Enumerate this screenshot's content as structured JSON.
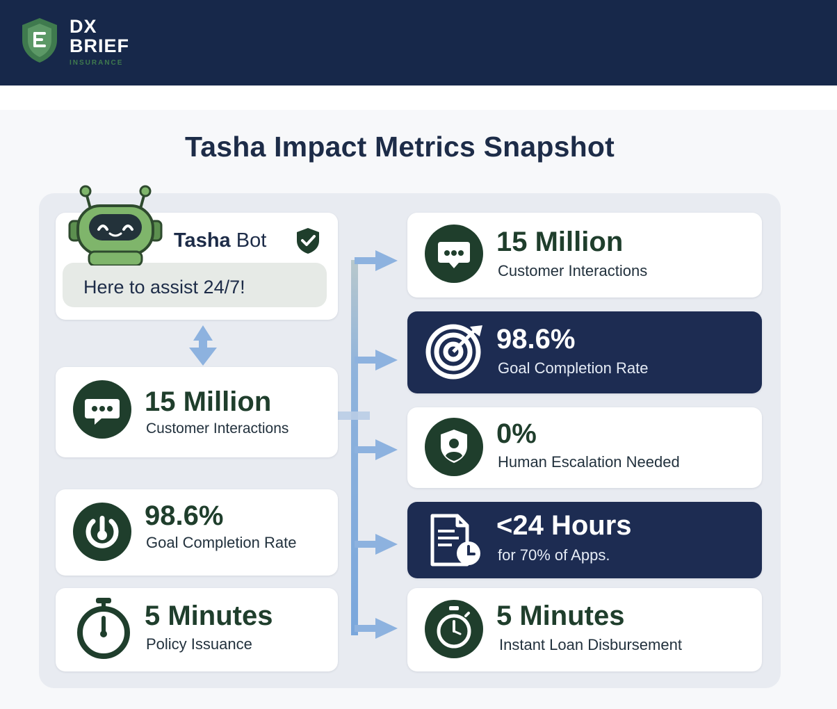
{
  "header": {
    "logo_line1": "DX",
    "logo_line2": "BRIEF",
    "logo_sub": "INSURANCE"
  },
  "title": "Tasha Impact Metrics Snapshot",
  "bot": {
    "name_bold": "Tasha",
    "name_rest": "Bot",
    "greeting": "Here to assist 24/7!"
  },
  "left_metrics": [
    {
      "value": "15 Million",
      "label": "Customer Interactions",
      "icon": "chat-bubble-icon"
    },
    {
      "value": "98.6%",
      "label": "Goal Completion Rate",
      "icon": "goal-gauge-icon"
    },
    {
      "value": "5 Minutes",
      "label": "Policy Issuance",
      "icon": "stopwatch-icon"
    }
  ],
  "right_metrics": [
    {
      "value": "15 Million",
      "label": "Customer Interactions",
      "icon": "chat-bubble-icon",
      "style": "light"
    },
    {
      "value": "98.6%",
      "label": "Goal Completion Rate",
      "icon": "target-icon",
      "style": "dark"
    },
    {
      "value": "0%",
      "label": "Human Escalation Needed",
      "icon": "shield-user-icon",
      "style": "light"
    },
    {
      "value": "<24 Hours",
      "label": "for 70% of Apps.",
      "icon": "document-clock-icon",
      "style": "dark"
    },
    {
      "value": "5 Minutes",
      "label": "Instant Loan Disbursement",
      "icon": "stopwatch-icon",
      "style": "light"
    }
  ],
  "colors": {
    "navy": "#17284a",
    "dark_card": "#1d2c52",
    "icon_green": "#1f3e2c",
    "bot_green": "#7fb56b",
    "arrow_blue": "#7aa7dc"
  }
}
